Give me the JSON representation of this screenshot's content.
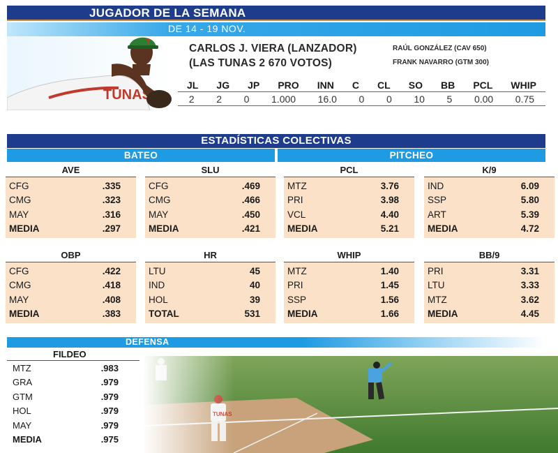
{
  "header": {
    "title": "JUGADOR DE LA SEMANA",
    "dates": "DE 14 - 19 NOV."
  },
  "player": {
    "name_line1": "CARLOS J. VIERA (LANZADOR)",
    "name_line2": "(LAS TUNAS 2 670 VOTOS)",
    "others": [
      "RAÚL GONZÁLEZ (CAV 650)",
      "FRANK NAVARRO (GTM 300)"
    ],
    "stat_headers": [
      "JL",
      "JG",
      "JP",
      "PRO",
      "INN",
      "C",
      "CL",
      "SO",
      "BB",
      "PCL",
      "WHIP"
    ],
    "stat_values": [
      "2",
      "2",
      "0",
      "1.000",
      "16.0",
      "0",
      "0",
      "10",
      "5",
      "0.00",
      "0.75"
    ]
  },
  "colectivas": {
    "title": "ESTADÍSTICAS COLECTIVAS",
    "bateo_label": "BATEO",
    "pitcheo_label": "PITCHEO",
    "cards": [
      {
        "title": "AVE",
        "rows": [
          [
            "CFG",
            ".335"
          ],
          [
            "CMG",
            ".323"
          ],
          [
            "MAY",
            ".316"
          ],
          [
            "MEDIA",
            ".297"
          ]
        ]
      },
      {
        "title": "SLU",
        "rows": [
          [
            "CFG",
            ".469"
          ],
          [
            "CMG",
            ".466"
          ],
          [
            "MAY",
            ".450"
          ],
          [
            "MEDIA",
            ".421"
          ]
        ]
      },
      {
        "title": "PCL",
        "rows": [
          [
            "MTZ",
            "3.76"
          ],
          [
            "PRI",
            "3.98"
          ],
          [
            "VCL",
            "4.40"
          ],
          [
            "MEDIA",
            "5.21"
          ]
        ]
      },
      {
        "title": "K/9",
        "rows": [
          [
            "IND",
            "6.09"
          ],
          [
            "SSP",
            "5.80"
          ],
          [
            "ART",
            "5.39"
          ],
          [
            "MEDIA",
            "4.72"
          ]
        ]
      },
      {
        "title": "OBP",
        "rows": [
          [
            "CFG",
            ".422"
          ],
          [
            "CMG",
            ".418"
          ],
          [
            "MAY",
            ".408"
          ],
          [
            "MEDIA",
            ".383"
          ]
        ]
      },
      {
        "title": "HR",
        "rows": [
          [
            "LTU",
            "45"
          ],
          [
            "IND",
            "40"
          ],
          [
            "HOL",
            "39"
          ],
          [
            "TOTAL",
            "531"
          ]
        ]
      },
      {
        "title": "WHIP",
        "rows": [
          [
            "MTZ",
            "1.40"
          ],
          [
            "PRI",
            "1.45"
          ],
          [
            "SSP",
            "1.56"
          ],
          [
            "MEDIA",
            "1.66"
          ]
        ]
      },
      {
        "title": "BB/9",
        "rows": [
          [
            "PRI",
            "3.31"
          ],
          [
            "LTU",
            "3.33"
          ],
          [
            "MTZ",
            "3.62"
          ],
          [
            "MEDIA",
            "4.45"
          ]
        ]
      }
    ]
  },
  "defensa": {
    "title": "DEFENSA",
    "fildeo_title": "FILDEO",
    "rows": [
      [
        "MTZ",
        ".983"
      ],
      [
        "GRA",
        ".979"
      ],
      [
        "GTM",
        ".979"
      ],
      [
        "HOL",
        ".979"
      ],
      [
        "MAY",
        ".979"
      ],
      [
        "MEDIA",
        ".975"
      ]
    ]
  },
  "colors": {
    "navy": "#1e3c8c",
    "sky": "#1f9be3",
    "card_fill": "#fae1c8"
  }
}
